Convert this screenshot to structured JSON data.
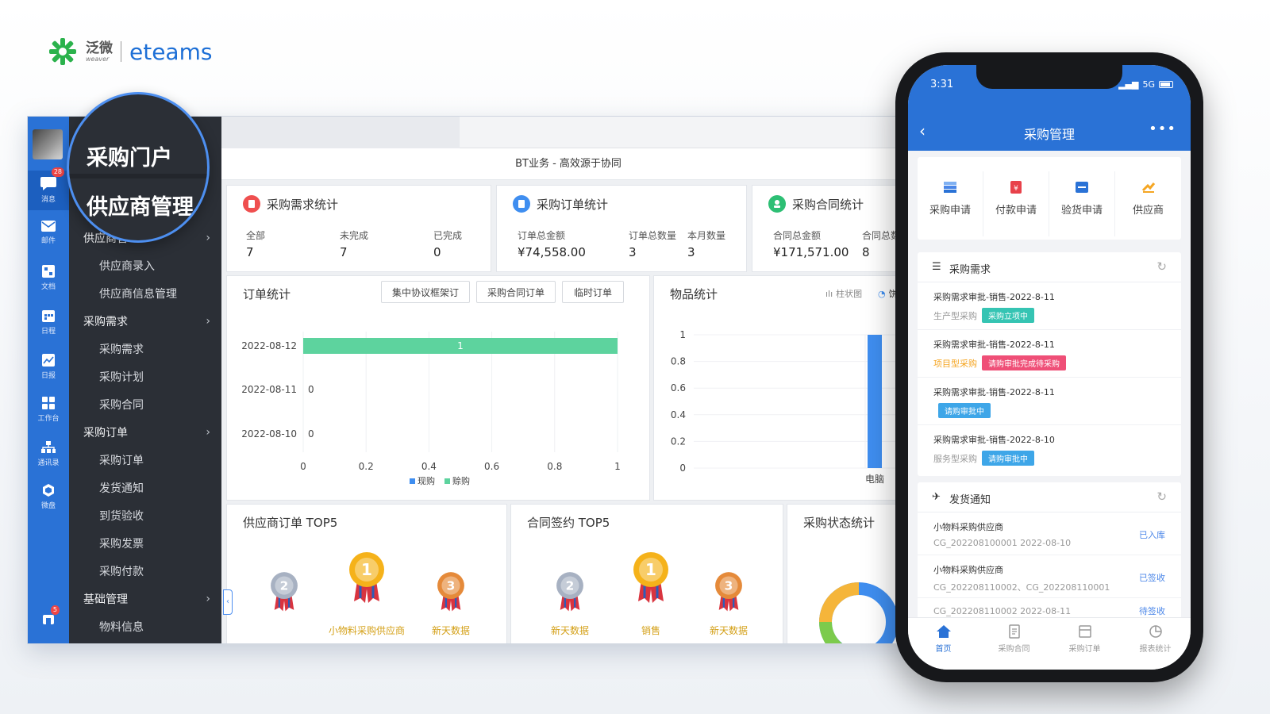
{
  "brand": {
    "cn": "泛微",
    "en_small": "weaver",
    "product": "eteams",
    "color": "#1d6fd6"
  },
  "iconbar": {
    "items": [
      {
        "label": "消息",
        "icon": "chat-icon",
        "badge": "28"
      },
      {
        "label": "邮件",
        "icon": "mail-icon"
      },
      {
        "label": "文档",
        "icon": "document-icon"
      },
      {
        "label": "日程",
        "icon": "calendar-icon"
      },
      {
        "label": "日报",
        "icon": "report-icon"
      },
      {
        "label": "工作台",
        "icon": "apps-icon"
      },
      {
        "label": "通讯录",
        "icon": "contacts-icon"
      },
      {
        "label": "微盘",
        "icon": "cloud-drive-icon"
      }
    ],
    "bottom_badge": "5"
  },
  "magnifier": {
    "line1": "采购门户",
    "line2": "供应商管理"
  },
  "sidebar": {
    "groups": [
      {
        "label": "供应商管理",
        "items": [
          "供应商录入",
          "供应商信息管理"
        ]
      },
      {
        "label": "采购需求",
        "items": [
          "采购需求",
          "采购计划",
          "采购合同"
        ]
      },
      {
        "label": "采购订单",
        "items": [
          "采购订单",
          "发货通知",
          "到货验收",
          "采购发票",
          "采购付款"
        ]
      },
      {
        "label": "基础管理",
        "items": [
          "物料信息"
        ]
      }
    ]
  },
  "header": {
    "subtitle": "BT业务 - 高效源于协同"
  },
  "stats": {
    "demand": {
      "title": "采购需求统计",
      "labels": [
        "全部",
        "未完成",
        "已完成"
      ],
      "values": [
        "7",
        "7",
        "0"
      ]
    },
    "order": {
      "title": "采购订单统计",
      "labels": [
        "订单总金额",
        "订单总数量",
        "本月数量"
      ],
      "values": [
        "¥74,558.00",
        "3",
        "3"
      ]
    },
    "contract": {
      "title": "采购合同统计",
      "labels": [
        "合同总金额",
        "合同总数"
      ],
      "values": [
        "¥171,571.00",
        "8"
      ]
    }
  },
  "order_chart_card": {
    "title": "订单统计",
    "buttons": [
      "集中协议框架订",
      "采购合同订单",
      "临时订单"
    ]
  },
  "item_chart_card": {
    "title": "物品统计",
    "toggle_bar": "柱状图",
    "toggle_pie": "饼"
  },
  "chart_data": [
    {
      "type": "bar",
      "orientation": "horizontal",
      "categories": [
        "2022-08-12",
        "2022-08-11",
        "2022-08-10"
      ],
      "series": [
        {
          "name": "现购",
          "values": [
            1,
            0,
            0
          ],
          "color": "#5dd39e"
        },
        {
          "name": "赊购",
          "values": [
            0,
            0,
            0
          ],
          "color": "#5dd39e"
        }
      ],
      "data_labels": [
        "1",
        "0",
        "0"
      ],
      "xlim": [
        0,
        1
      ],
      "xticks": [
        "0",
        "0.2",
        "0.4",
        "0.6",
        "0.8",
        "1"
      ],
      "legend": "bottom"
    },
    {
      "type": "bar",
      "categories": [
        "电脑"
      ],
      "values": [
        1
      ],
      "color": "#3f8ef0",
      "ylim": [
        0,
        1
      ],
      "yticks": [
        "0",
        "0.2",
        "0.4",
        "0.6",
        "0.8",
        "1"
      ]
    }
  ],
  "top5": {
    "supplier": {
      "title": "供应商订单 TOP5",
      "names": [
        "",
        "小物料采购供应商",
        "新天数据"
      ],
      "ranks": [
        "2",
        "1",
        "3"
      ]
    },
    "contract": {
      "title": "合同签约 TOP5",
      "names": [
        "新天数据",
        "销售",
        "新天数据"
      ],
      "ranks": [
        "2",
        "1",
        "3"
      ]
    },
    "status": {
      "title": "采购状态统计"
    }
  },
  "phone": {
    "time": "3:31",
    "network": "5G",
    "title": "采购管理",
    "grid": [
      {
        "label": "采购申请",
        "icon": "stack-icon",
        "color": "#4a86e8"
      },
      {
        "label": "付款申请",
        "icon": "payment-icon",
        "color": "#e8414a"
      },
      {
        "label": "验货申请",
        "icon": "inspect-icon",
        "color": "#2a72d6"
      },
      {
        "label": "供应商",
        "icon": "supplier-icon",
        "color": "#f5a623"
      }
    ],
    "demand_section": {
      "title": "采购需求",
      "items": [
        {
          "title": "采购需求审批-销售-2022-8-11",
          "type": "生产型采购",
          "tag": "采购立项中",
          "tag_color": "#35c4b3"
        },
        {
          "title": "采购需求审批-销售-2022-8-11",
          "type": "项目型采购",
          "tag": "请购审批完成待采购",
          "tag_color": "#ef4f77"
        },
        {
          "title": "采购需求审批-销售-2022-8-11",
          "type": "",
          "tag": "请购审批中",
          "tag_color": "#3ea6e8"
        },
        {
          "title": "采购需求审批-销售-2022-8-10",
          "type": "服务型采购",
          "tag": "请购审批中",
          "tag_color": "#3ea6e8"
        }
      ]
    },
    "delivery_section": {
      "title": "发货通知",
      "items": [
        {
          "title": "小物料采购供应商",
          "sub": "CG_202208100001  2022-08-10",
          "status": "已入库"
        },
        {
          "title": "小物料采购供应商",
          "sub": "CG_202208110002、CG_202208110001",
          "status": "已签收"
        },
        {
          "title": "",
          "sub": "CG_202208110002  2022-08-11",
          "status": "待签收"
        }
      ]
    },
    "tabs": [
      {
        "label": "首页",
        "icon": "home-icon"
      },
      {
        "label": "采购合同",
        "icon": "contract-icon"
      },
      {
        "label": "采购订单",
        "icon": "order-icon"
      },
      {
        "label": "报表统计",
        "icon": "pie-report-icon"
      }
    ]
  }
}
